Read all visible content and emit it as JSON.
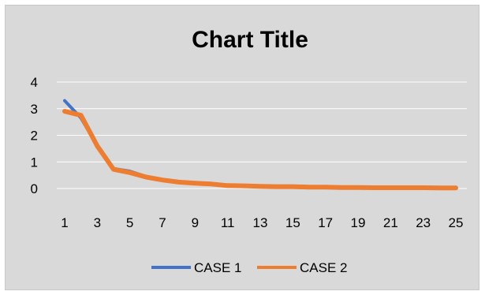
{
  "chart_data": {
    "type": "line",
    "title": "Chart Title",
    "xlabel": "",
    "ylabel": "",
    "ylim": [
      0,
      4
    ],
    "yticks": [
      "0",
      "1",
      "2",
      "3",
      "4"
    ],
    "x": [
      1,
      2,
      3,
      4,
      5,
      6,
      7,
      8,
      9,
      10,
      11,
      12,
      13,
      14,
      15,
      16,
      17,
      18,
      19,
      20,
      21,
      22,
      23,
      24,
      25
    ],
    "xtick_labels": [
      "1",
      "3",
      "5",
      "7",
      "9",
      "11",
      "13",
      "15",
      "17",
      "19",
      "21",
      "23",
      "25"
    ],
    "grid": true,
    "legend": "bottom",
    "series": [
      {
        "name": "CASE 1",
        "color": "#4472c4",
        "values": [
          3.3,
          2.65,
          1.6,
          0.75,
          0.65,
          0.45,
          0.33,
          0.25,
          0.2,
          0.18,
          0.12,
          0.1,
          0.09,
          0.08,
          0.07,
          0.06,
          0.05,
          0.05,
          0.04,
          0.05,
          0.05,
          0.04,
          0.04,
          0.03,
          0.03
        ]
      },
      {
        "name": "CASE 2",
        "color": "#ed7d31",
        "values": [
          2.9,
          2.75,
          1.6,
          0.72,
          0.6,
          0.43,
          0.32,
          0.24,
          0.2,
          0.17,
          0.11,
          0.1,
          0.08,
          0.07,
          0.07,
          0.05,
          0.05,
          0.04,
          0.04,
          0.03,
          0.03,
          0.03,
          0.03,
          0.02,
          0.02
        ]
      }
    ]
  }
}
